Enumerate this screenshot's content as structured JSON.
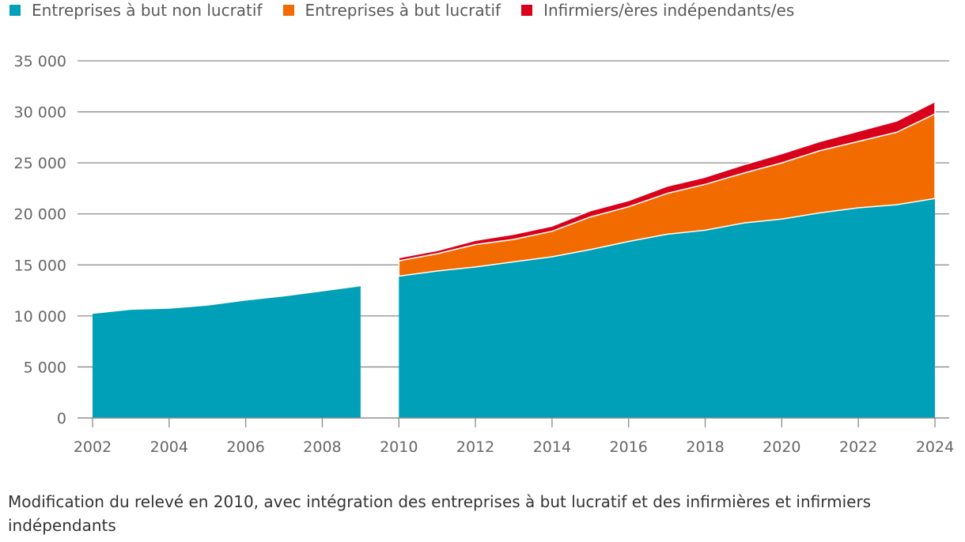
{
  "legend": [
    {
      "label": "Entreprises à but non lucratif",
      "color": "#00a0b8"
    },
    {
      "label": "Entreprises à but lucratif",
      "color": "#f26b00"
    },
    {
      "label": "Infirmiers/ères indépendants/es",
      "color": "#d9001b"
    }
  ],
  "note": "Modification du relevé en 2010, avec intégration des entreprises à but lucratif et des infirmières et infirmiers indépendants",
  "chart_data": {
    "type": "area",
    "stacked": true,
    "title": "",
    "xlabel": "",
    "ylabel": "",
    "ylim": [
      0,
      35000
    ],
    "xlim": [
      2002,
      2024
    ],
    "y_ticks": [
      0,
      5000,
      10000,
      15000,
      20000,
      25000,
      30000,
      35000
    ],
    "y_tick_labels": [
      "0",
      "5 000",
      "10 000",
      "15 000",
      "20 000",
      "25 000",
      "30 000",
      "35 000"
    ],
    "x_ticks": [
      2002,
      2004,
      2006,
      2008,
      2010,
      2012,
      2014,
      2016,
      2018,
      2020,
      2022,
      2024
    ],
    "x_tick_labels": [
      "2002",
      "2004",
      "2006",
      "2008",
      "2010",
      "2012",
      "2014",
      "2016",
      "2018",
      "2020",
      "2022",
      "2024"
    ],
    "grid": true,
    "legend_position": "top-left",
    "segments": [
      {
        "x": [
          2002,
          2003,
          2004,
          2005,
          2006,
          2007,
          2008,
          2009
        ],
        "series": [
          {
            "name": "Entreprises à but non lucratif",
            "color": "#00a0b8",
            "values": [
              10200,
              10600,
              10700,
              11000,
              11500,
              11900,
              12400,
              12900
            ]
          }
        ]
      },
      {
        "x": [
          2010,
          2011,
          2012,
          2013,
          2014,
          2015,
          2016,
          2017,
          2018,
          2019,
          2020,
          2021,
          2022,
          2023,
          2024
        ],
        "series": [
          {
            "name": "Entreprises à but non lucratif",
            "color": "#00a0b8",
            "values": [
              13900,
              14400,
              14800,
              15300,
              15800,
              16500,
              17300,
              18000,
              18400,
              19100,
              19500,
              20100,
              20600,
              20900,
              21500
            ]
          },
          {
            "name": "Entreprises à but lucratif",
            "color": "#f26b00",
            "values": [
              1500,
              1700,
              2200,
              2200,
              2500,
              3200,
              3400,
              4000,
              4500,
              4900,
              5500,
              6100,
              6500,
              7100,
              8300
            ]
          },
          {
            "name": "Infirmiers/ères indépendants/es",
            "color": "#d9001b",
            "values": [
              300,
              300,
              400,
              500,
              500,
              600,
              600,
              700,
              700,
              800,
              900,
              900,
              1000,
              1100,
              1200
            ]
          }
        ]
      }
    ]
  }
}
